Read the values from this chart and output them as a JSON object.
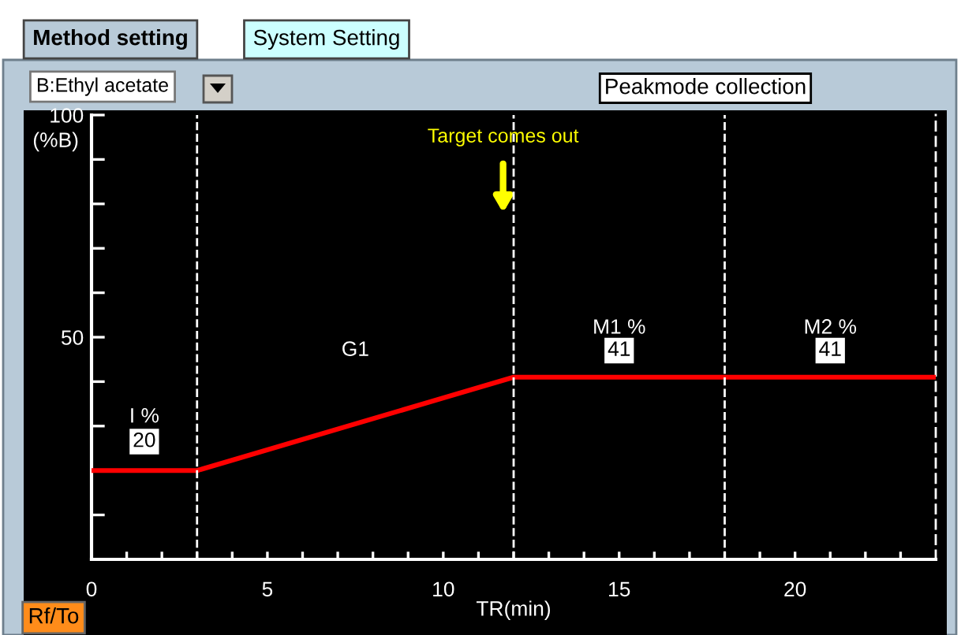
{
  "chart_data": {
    "type": "line",
    "xlabel": "TR(min)",
    "ylabel": "(%B)",
    "x": [
      0,
      3,
      12,
      24
    ],
    "series": [
      {
        "color": "#ff0000",
        "values": [
          20,
          20,
          41,
          41
        ]
      }
    ],
    "xlim": [
      0,
      24
    ],
    "ylim": [
      0,
      100
    ],
    "xticks": [
      0,
      {
        "value": 1,
        "label": null
      },
      {
        "value": 2,
        "label": null
      },
      {
        "value": 3,
        "label": null
      },
      {
        "value": 4,
        "label": null
      },
      5,
      {
        "value": 6,
        "label": null
      },
      {
        "value": 7,
        "label": null
      },
      {
        "value": 8,
        "label": null
      },
      {
        "value": 9,
        "label": null
      },
      10,
      {
        "value": 11,
        "label": null
      },
      {
        "value": 12,
        "label": null
      },
      {
        "value": 13,
        "label": null
      },
      {
        "value": 14,
        "label": null
      },
      15,
      {
        "value": 16,
        "label": null
      },
      {
        "value": 17,
        "label": null
      },
      {
        "value": 18,
        "label": null
      },
      {
        "value": 19,
        "label": null
      },
      20,
      {
        "value": 21,
        "label": null
      },
      {
        "value": 22,
        "label": null
      },
      {
        "value": 23,
        "label": null
      }
    ],
    "yticks": [
      {
        "value": 10,
        "label": null
      },
      {
        "value": 20,
        "label": null
      },
      {
        "value": 30,
        "label": null
      },
      {
        "value": 40,
        "label": null
      },
      50,
      {
        "value": 60,
        "label": null
      },
      {
        "value": 70,
        "label": null
      },
      {
        "value": 80,
        "label": null
      },
      {
        "value": 90,
        "label": null
      },
      100
    ],
    "ref_lines": [
      {
        "axis": "x",
        "value": 3,
        "color": "#ffffff",
        "line_style": "dashed"
      },
      {
        "axis": "x",
        "value": 12,
        "color": "#ffffff",
        "line_style": "dashed"
      },
      {
        "axis": "x",
        "value": 18,
        "color": "#ffffff",
        "line_style": "dashed"
      }
    ],
    "grid": false,
    "legend": false,
    "marker": "none",
    "line_style": "solid",
    "annotations": [
      "Method setting",
      "System Setting",
      "B:Ethyl acetate",
      "Peakmode collection",
      "Rf/To",
      "Target comes out",
      "I %",
      "20",
      "G1",
      "M1 %",
      "41",
      "M2 %",
      "41"
    ]
  }
}
